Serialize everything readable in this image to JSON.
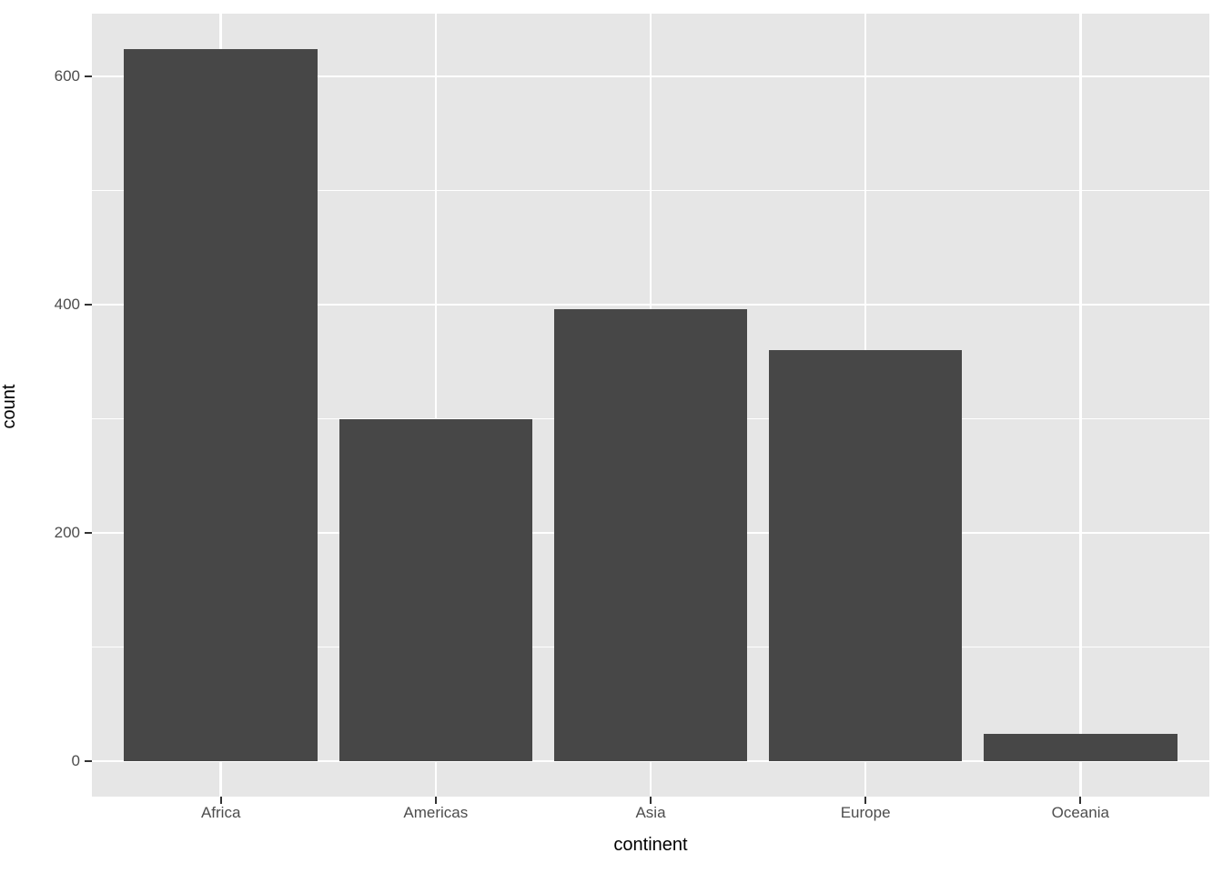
{
  "chart_data": {
    "type": "bar",
    "title": "",
    "xlabel": "continent",
    "ylabel": "count",
    "categories": [
      "Africa",
      "Americas",
      "Asia",
      "Europe",
      "Oceania"
    ],
    "values": [
      624,
      300,
      396,
      360,
      24
    ],
    "y_ticks": [
      0,
      200,
      400,
      600
    ],
    "y_minor_ticks": [
      100,
      300,
      500
    ],
    "ylim": [
      0,
      624
    ],
    "grid": "white major and minor gridlines on gray panel",
    "legend": "none",
    "bar_width_fraction": 0.9,
    "style": "ggplot2 theme_gray",
    "colors": {
      "bar_fill": "#474747",
      "panel_bg": "#E6E6E6",
      "grid_line": "#FFFFFF",
      "tick_text": "#4D4D4D",
      "axis_title": "#000000",
      "tick_mark": "#333333",
      "page_bg": "#FFFFFF"
    }
  }
}
